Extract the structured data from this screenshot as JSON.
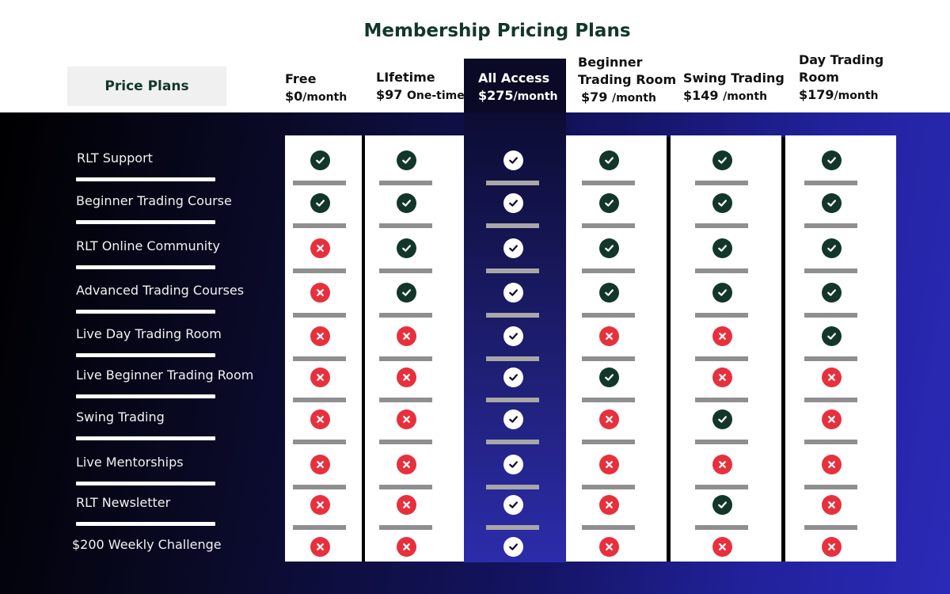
{
  "title": "Membership Pricing Plans",
  "price_plans_label": "Price Plans",
  "plans": [
    {
      "name": "Free",
      "price": "$0",
      "period": "/month"
    },
    {
      "name": "LIfetime",
      "price": "$97",
      "period": "One-time"
    },
    {
      "name": "All Access",
      "price": "$275",
      "period": "/month"
    },
    {
      "name": "Beginner Trading Room",
      "price": "$79",
      "period": "/month"
    },
    {
      "name": "Swing Trading",
      "price": "$149",
      "period": "/month"
    },
    {
      "name": "Day Trading Room",
      "price": "$179",
      "period": "/month"
    }
  ],
  "features": [
    {
      "label": "RLT Support",
      "included": [
        true,
        true,
        true,
        true,
        true,
        true
      ]
    },
    {
      "label": "Beginner Trading Course",
      "included": [
        true,
        true,
        true,
        true,
        true,
        true
      ]
    },
    {
      "label": "RLT Online Community",
      "included": [
        false,
        true,
        true,
        true,
        true,
        true
      ]
    },
    {
      "label": "Advanced Trading Courses",
      "included": [
        false,
        true,
        true,
        true,
        true,
        true
      ]
    },
    {
      "label": "Live Day Trading Room",
      "included": [
        false,
        false,
        true,
        false,
        false,
        true
      ]
    },
    {
      "label": "Live Beginner Trading Room",
      "included": [
        false,
        false,
        true,
        true,
        false,
        false
      ]
    },
    {
      "label": "Swing Trading",
      "included": [
        false,
        false,
        true,
        false,
        true,
        false
      ]
    },
    {
      "label": "Live Mentorships",
      "included": [
        false,
        false,
        true,
        false,
        false,
        false
      ]
    },
    {
      "label": "RLT Newsletter",
      "included": [
        false,
        false,
        true,
        false,
        true,
        false
      ]
    },
    {
      "label": "$200 Weekly Challenge",
      "included": [
        false,
        false,
        true,
        false,
        false,
        false
      ]
    }
  ],
  "icons": {
    "included": "check-circle-icon",
    "excluded": "x-circle-icon"
  },
  "colors": {
    "brand_green": "#12372a",
    "excluded_red": "#e8303d",
    "highlight_column": "#0a0a26"
  }
}
